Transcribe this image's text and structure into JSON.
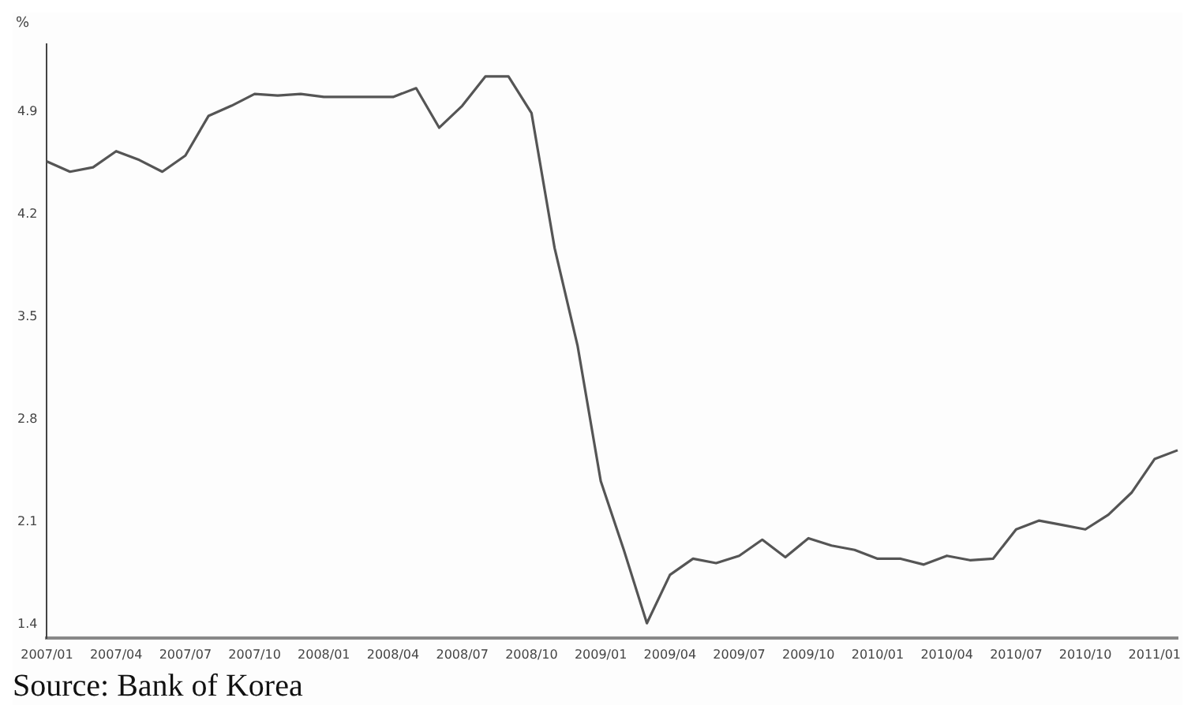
{
  "chart_data": {
    "type": "line",
    "ylabel": "%",
    "categories": [
      "2007/01",
      null,
      null,
      "2007/04",
      null,
      null,
      "2007/07",
      null,
      null,
      "2007/10",
      null,
      null,
      "2008/01",
      null,
      null,
      "2008/04",
      null,
      null,
      "2008/07",
      null,
      null,
      "2008/10",
      null,
      null,
      "2009/01",
      null,
      null,
      "2009/04",
      null,
      null,
      "2009/07",
      null,
      null,
      "2009/10",
      null,
      null,
      "2010/01",
      null,
      null,
      "2010/04",
      null,
      null,
      "2010/07",
      null,
      null,
      "2010/10",
      null,
      null,
      "2011/01",
      null
    ],
    "series": [
      {
        "color": "#555555",
        "values": [
          4.56,
          4.49,
          4.52,
          4.63,
          4.57,
          4.49,
          4.6,
          4.87,
          4.94,
          5.02,
          5.01,
          5.02,
          5.0,
          5.0,
          5.0,
          5.0,
          5.06,
          4.79,
          4.94,
          5.14,
          5.14,
          4.89,
          3.97,
          3.3,
          2.38,
          1.91,
          1.41,
          1.74,
          1.85,
          1.82,
          1.87,
          1.98,
          1.86,
          1.99,
          1.94,
          1.91,
          1.85,
          1.85,
          1.81,
          1.87,
          1.84,
          1.85,
          2.05,
          2.11,
          2.08,
          2.05,
          2.15,
          2.3,
          2.53,
          2.59
        ]
      }
    ],
    "ylim": [
      1.31,
      5.36
    ],
    "yticks": [
      1.4,
      2.1,
      2.8,
      3.5,
      4.2,
      4.9
    ],
    "grid": false,
    "marker": "none",
    "line_style": "solid",
    "annotations": [
      "Source: Bank of Korea"
    ]
  }
}
